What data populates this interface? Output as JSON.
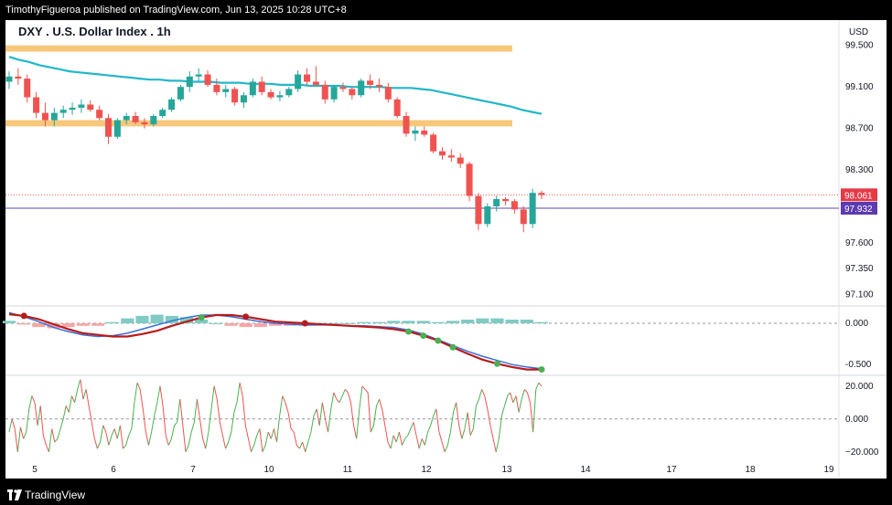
{
  "header": {
    "publisher": "TimothyFigueroa published on TradingView.com, Jun 13, 2025 10:28 UTC+8",
    "title": "DXY . U.S. Dollar Index . 1h"
  },
  "footer": {
    "brand": "TradingView",
    "logo_icon": "tradingview-logo-icon"
  },
  "colors": {
    "up": "#26a69a",
    "down": "#ef5350",
    "ma": "#22b7c9",
    "zone": "#f7c77a",
    "macd_slow": "#b71c1c",
    "macd_fast": "#3b6fd8",
    "osc_up": "#4caf50",
    "osc_down": "#ef5350"
  },
  "chart_data": {
    "type": "candlestick",
    "currency": "USD",
    "x_ticks": [
      "5",
      "6",
      "7",
      "10",
      "11",
      "12",
      "13",
      "14",
      "17",
      "18",
      "19"
    ],
    "price_axis": {
      "ticks": [
        "99.500",
        "99.100",
        "98.700",
        "98.300",
        "97.600",
        "97.350",
        "97.100"
      ],
      "range": [
        97.0,
        99.55
      ]
    },
    "price_labels": {
      "last": "98.061",
      "line": "97.932"
    },
    "resistance_zones": [
      [
        99.44,
        99.5
      ],
      [
        98.72,
        98.78
      ]
    ],
    "candles": [
      [
        99.15,
        99.25,
        99.08,
        99.2
      ],
      [
        99.2,
        99.28,
        99.12,
        99.18
      ],
      [
        99.18,
        99.22,
        98.95,
        99.0
      ],
      [
        99.0,
        99.05,
        98.8,
        98.85
      ],
      [
        98.85,
        98.95,
        98.72,
        98.78
      ],
      [
        98.78,
        98.9,
        98.72,
        98.85
      ],
      [
        98.85,
        98.92,
        98.8,
        98.88
      ],
      [
        98.88,
        98.95,
        98.83,
        98.9
      ],
      [
        98.9,
        98.98,
        98.85,
        98.93
      ],
      [
        98.93,
        98.97,
        98.86,
        98.88
      ],
      [
        98.88,
        98.92,
        98.78,
        98.8
      ],
      [
        98.8,
        98.84,
        98.55,
        98.62
      ],
      [
        98.62,
        98.8,
        98.6,
        98.78
      ],
      [
        98.78,
        98.85,
        98.74,
        98.82
      ],
      [
        98.82,
        98.86,
        98.74,
        98.76
      ],
      [
        98.76,
        98.8,
        98.7,
        98.74
      ],
      [
        98.74,
        98.84,
        98.72,
        98.82
      ],
      [
        98.82,
        98.9,
        98.8,
        98.88
      ],
      [
        98.88,
        99.0,
        98.86,
        98.98
      ],
      [
        98.98,
        99.12,
        98.96,
        99.1
      ],
      [
        99.1,
        99.25,
        99.05,
        99.2
      ],
      [
        99.2,
        99.28,
        99.15,
        99.22
      ],
      [
        99.22,
        99.26,
        99.1,
        99.12
      ],
      [
        99.12,
        99.18,
        99.02,
        99.05
      ],
      [
        99.05,
        99.12,
        99.0,
        99.08
      ],
      [
        99.08,
        99.1,
        98.92,
        98.95
      ],
      [
        98.95,
        99.05,
        98.9,
        99.02
      ],
      [
        99.02,
        99.18,
        99.0,
        99.15
      ],
      [
        99.15,
        99.2,
        99.02,
        99.05
      ],
      [
        99.05,
        99.08,
        98.98,
        99.0
      ],
      [
        99.0,
        99.06,
        98.96,
        99.02
      ],
      [
        99.02,
        99.1,
        99.0,
        99.08
      ],
      [
        99.08,
        99.26,
        99.05,
        99.22
      ],
      [
        99.22,
        99.28,
        99.12,
        99.15
      ],
      [
        99.15,
        99.3,
        99.1,
        99.12
      ],
      [
        99.12,
        99.16,
        98.94,
        98.98
      ],
      [
        98.98,
        99.12,
        98.95,
        99.1
      ],
      [
        99.1,
        99.14,
        99.05,
        99.08
      ],
      [
        99.08,
        99.1,
        98.98,
        99.02
      ],
      [
        99.02,
        99.18,
        99.0,
        99.16
      ],
      [
        99.16,
        99.22,
        99.08,
        99.12
      ],
      [
        99.12,
        99.18,
        99.05,
        99.1
      ],
      [
        99.1,
        99.14,
        98.95,
        98.98
      ],
      [
        98.98,
        99.0,
        98.8,
        98.82
      ],
      [
        98.82,
        98.86,
        98.62,
        98.65
      ],
      [
        98.65,
        98.72,
        98.58,
        98.68
      ],
      [
        98.68,
        98.72,
        98.62,
        98.64
      ],
      [
        98.64,
        98.66,
        98.46,
        98.48
      ],
      [
        98.48,
        98.52,
        98.4,
        98.44
      ],
      [
        98.44,
        98.5,
        98.38,
        98.42
      ],
      [
        98.42,
        98.46,
        98.32,
        98.36
      ],
      [
        98.36,
        98.38,
        98.0,
        98.05
      ],
      [
        98.05,
        98.08,
        97.72,
        97.78
      ],
      [
        97.78,
        97.98,
        97.75,
        97.95
      ],
      [
        97.95,
        98.05,
        97.9,
        98.02
      ],
      [
        98.02,
        98.04,
        97.96,
        98.0
      ],
      [
        98.0,
        98.02,
        97.88,
        97.92
      ],
      [
        97.92,
        97.95,
        97.7,
        97.78
      ],
      [
        97.78,
        98.12,
        97.74,
        98.08
      ],
      [
        98.08,
        98.1,
        98.02,
        98.06
      ]
    ],
    "ma_series": [
      99.39,
      99.36,
      99.34,
      99.31,
      99.29,
      99.27,
      99.25,
      99.24,
      99.23,
      99.22,
      99.21,
      99.2,
      99.19,
      99.18,
      99.17,
      99.17,
      99.16,
      99.16,
      99.15,
      99.15,
      99.15,
      99.14,
      99.14,
      99.14,
      99.13,
      99.13,
      99.13,
      99.12,
      99.12,
      99.12,
      99.11,
      99.11,
      99.11,
      99.11,
      99.1,
      99.1,
      99.1,
      99.1,
      99.09,
      99.09,
      99.09,
      99.08,
      99.07,
      99.05,
      99.03,
      99.01,
      98.99,
      98.97,
      98.95,
      98.93,
      98.91,
      98.88,
      98.86,
      98.84
    ],
    "macd_panel": {
      "ticks": [
        "0.000",
        "-0.500"
      ],
      "range": [
        -0.62,
        0.2
      ],
      "fast": [
        0.13,
        0.08,
        0.02,
        -0.05,
        -0.1,
        -0.14,
        -0.16,
        -0.15,
        -0.12,
        -0.07,
        -0.02,
        0.03,
        0.07,
        0.1,
        0.1,
        0.08,
        0.05,
        0.02,
        0.0,
        -0.01,
        -0.02,
        -0.02,
        -0.02,
        -0.03,
        -0.03,
        -0.04,
        -0.05,
        -0.08,
        -0.13,
        -0.2,
        -0.27,
        -0.34,
        -0.4,
        -0.45,
        -0.5,
        -0.53,
        -0.55
      ],
      "slow": [
        0.11,
        0.09,
        0.05,
        -0.01,
        -0.07,
        -0.12,
        -0.14,
        -0.16,
        -0.16,
        -0.13,
        -0.09,
        -0.03,
        0.02,
        0.07,
        0.1,
        0.1,
        0.08,
        0.05,
        0.02,
        0.01,
        0.0,
        -0.01,
        -0.02,
        -0.03,
        -0.04,
        -0.05,
        -0.07,
        -0.1,
        -0.15,
        -0.21,
        -0.29,
        -0.37,
        -0.44,
        -0.49,
        -0.53,
        -0.56,
        -0.56
      ],
      "hist": [
        0.02,
        -0.01,
        -0.03,
        -0.04,
        -0.03,
        -0.02,
        -0.02,
        0.01,
        0.04,
        0.06,
        0.07,
        0.06,
        0.05,
        0.03,
        0.0,
        -0.02,
        -0.03,
        -0.03,
        -0.02,
        -0.02,
        -0.02,
        -0.01,
        0.0,
        0.0,
        0.01,
        0.01,
        0.02,
        0.02,
        0.02,
        0.01,
        0.02,
        0.03,
        0.04,
        0.04,
        0.03,
        0.03,
        0.01
      ]
    },
    "osc_panel": {
      "ticks": [
        "20.000",
        "0.000",
        "−20.000"
      ],
      "range": [
        -24,
        26
      ],
      "values": [
        -8,
        0,
        -6,
        -20,
        -5,
        -12,
        -8,
        6,
        14,
        10,
        -4,
        8,
        -10,
        -16,
        -20,
        -6,
        -14,
        -12,
        -6,
        0,
        8,
        4,
        14,
        10,
        18,
        24,
        12,
        18,
        8,
        -2,
        -12,
        -18,
        -14,
        -4,
        -8,
        -16,
        -10,
        -6,
        -12,
        -4,
        -18,
        -16,
        -10,
        -6,
        10,
        22,
        18,
        6,
        -8,
        -16,
        -8,
        2,
        10,
        20,
        8,
        -10,
        -16,
        -12,
        -4,
        -2,
        12,
        -4,
        -20,
        -16,
        -8,
        -2,
        12,
        0,
        -12,
        -18,
        -8,
        6,
        20,
        12,
        -2,
        -10,
        -18,
        -14,
        -8,
        4,
        10,
        22,
        14,
        -4,
        -12,
        -20,
        -16,
        -10,
        -6,
        -20,
        -16,
        -8,
        -12,
        -6,
        -14,
        2,
        14,
        10,
        4,
        -6,
        -8,
        -16,
        -18,
        -14,
        -20,
        -14,
        -8,
        2,
        6,
        -4,
        10,
        0,
        -8,
        6,
        16,
        12,
        10,
        14,
        18,
        16,
        10,
        -4,
        -12,
        6,
        20,
        18,
        16,
        -8,
        -4,
        8,
        12,
        6,
        -4,
        -14,
        -18,
        -10,
        -14,
        -8,
        -16,
        -12,
        -10,
        -6,
        -2,
        -10,
        -18,
        -12,
        -16,
        -8,
        -4,
        2,
        6,
        -8,
        -14,
        -20,
        -16,
        -8,
        4,
        10,
        -4,
        -12,
        -6,
        4,
        -10,
        -6,
        8,
        12,
        18,
        14,
        6,
        -4,
        -12,
        -20,
        -12,
        2,
        8,
        14,
        16,
        10,
        14,
        4,
        12,
        18,
        16,
        10,
        -8,
        18,
        22,
        20
      ]
    }
  }
}
